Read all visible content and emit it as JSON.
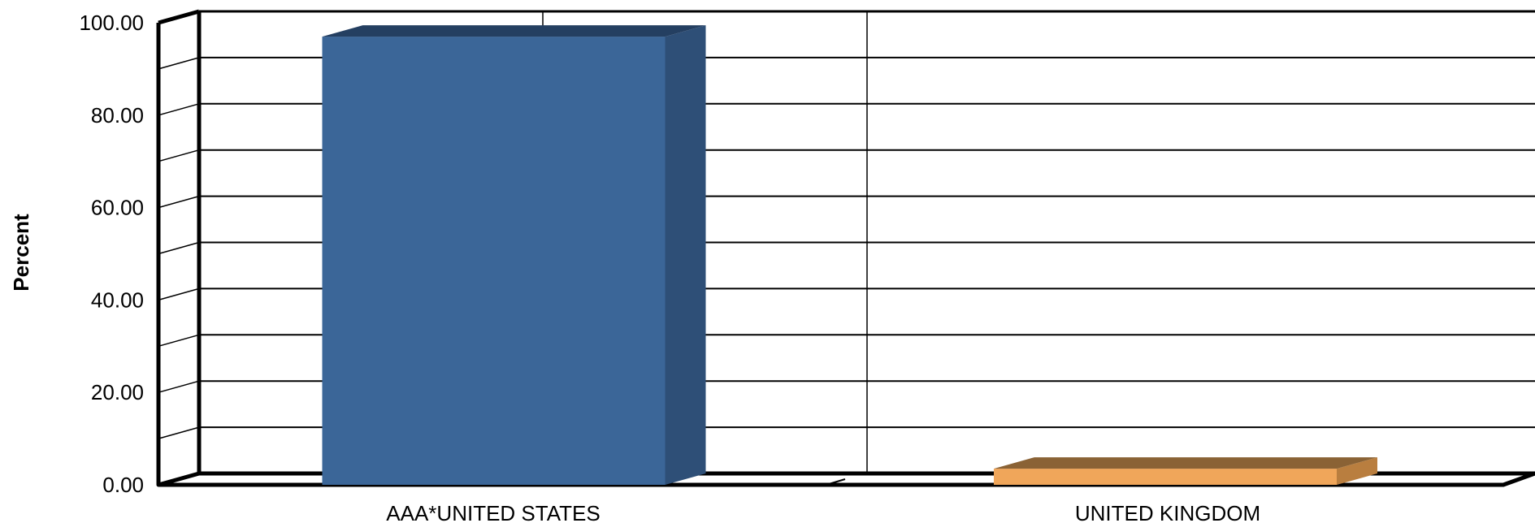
{
  "chart_data": {
    "type": "bar",
    "title": "",
    "xlabel": "",
    "ylabel": "Percent",
    "categories": [
      "AAA*UNITED STATES",
      "UNITED KINGDOM"
    ],
    "values": [
      97.0,
      3.5
    ],
    "ylim": [
      0,
      100
    ],
    "yticks": [
      "0.00",
      "20.00",
      "40.00",
      "60.00",
      "80.00",
      "100.00"
    ],
    "grid": true,
    "legend": "none",
    "colors": {
      "bars": [
        {
          "front": "#3b6698",
          "side": "#2e4f77",
          "top": "#243f61"
        },
        {
          "front": "#f0a65a",
          "side": "#b97e3f",
          "top": "#8a6235"
        }
      ],
      "axis": "#000000",
      "grid": "#000000"
    }
  }
}
